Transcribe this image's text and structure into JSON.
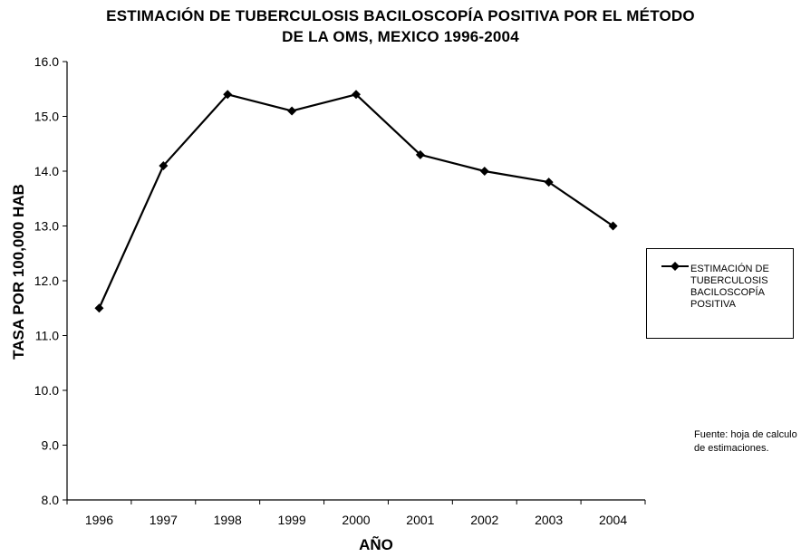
{
  "chart_data": {
    "type": "line",
    "title_line1": "ESTIMACIÓN DE TUBERCULOSIS BACILOSCOPÍA POSITIVA POR EL MÉTODO",
    "title_line2": "DE LA OMS, MEXICO 1996-2004",
    "xlabel": "AÑO",
    "ylabel": "TASA POR 100,000 HAB",
    "categories": [
      "1996",
      "1997",
      "1998",
      "1999",
      "2000",
      "2001",
      "2002",
      "2003",
      "2004"
    ],
    "series": [
      {
        "name": "ESTIMACIÓN DE TUBERCULOSIS BACILOSCOPÍA POSITIVA",
        "values": [
          11.5,
          14.1,
          15.4,
          15.1,
          15.4,
          14.3,
          14.0,
          13.8,
          13.0
        ],
        "color": "#000000"
      }
    ],
    "ylim": [
      8.0,
      16.0
    ],
    "yticks": [
      "8.0",
      "9.0",
      "10.0",
      "11.0",
      "12.0",
      "13.0",
      "14.0",
      "15.0",
      "16.0"
    ],
    "grid": false,
    "legend_position": "right",
    "source_note": "Fuente: hoja de calculo de estimaciones."
  }
}
